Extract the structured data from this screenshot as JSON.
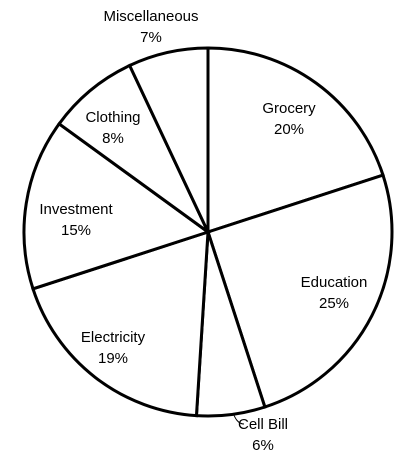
{
  "chart_data": {
    "type": "pie",
    "title": "",
    "categories": [
      "Grocery",
      "Education",
      "Cell Bill",
      "Electricity",
      "Investment",
      "Clothing",
      "Miscellaneous"
    ],
    "values": [
      20,
      25,
      6,
      19,
      15,
      8,
      7
    ],
    "value_labels": [
      "20%",
      "25%",
      "6%",
      "19%",
      "15%",
      "8%",
      "7%"
    ],
    "unit": "%",
    "start_angle_deg": 0,
    "direction": "clockwise",
    "slice_fill": "#ffffff",
    "stroke_color": "#000000",
    "legend": "none"
  }
}
